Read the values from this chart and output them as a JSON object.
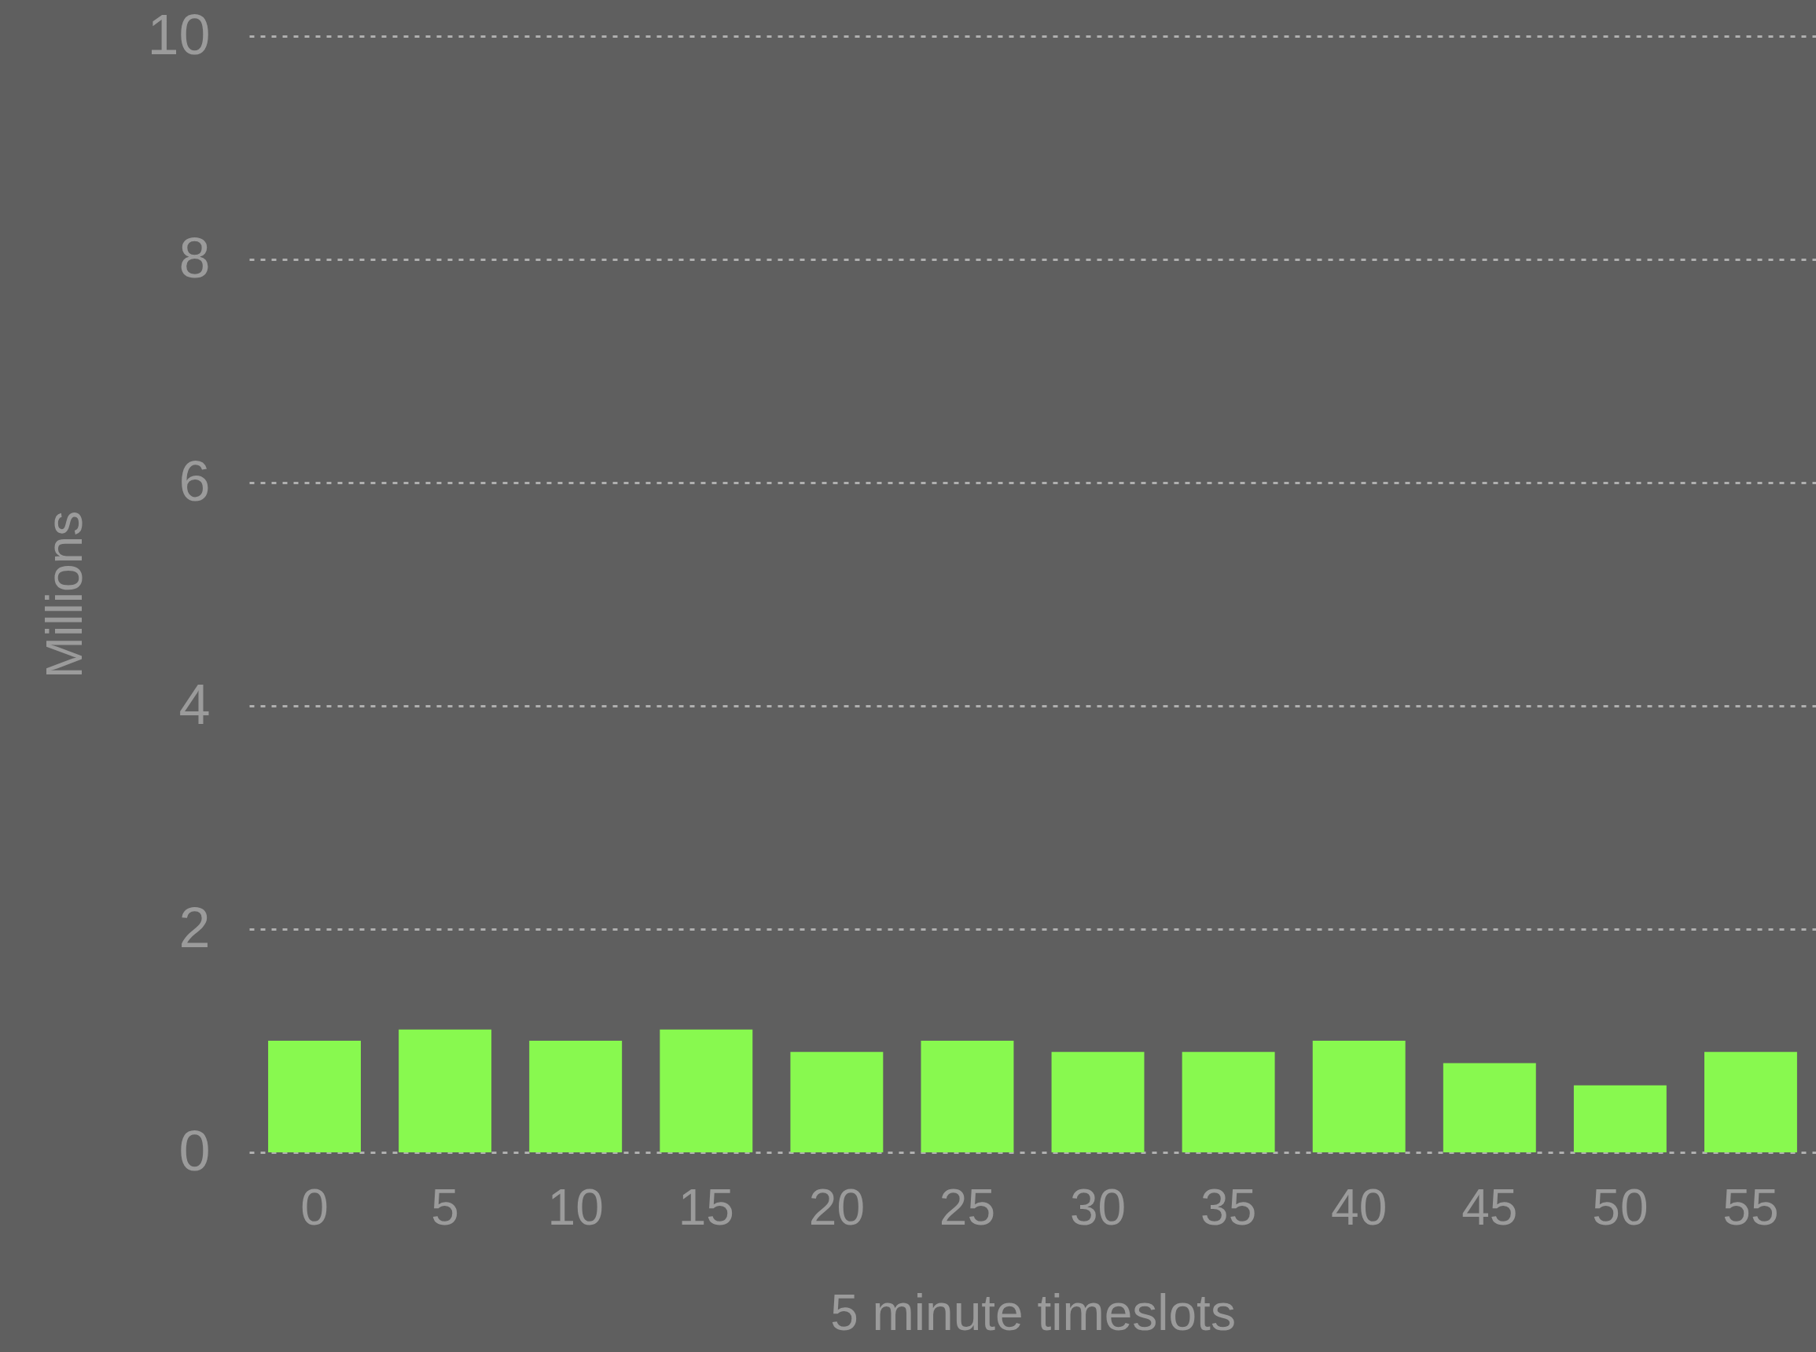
{
  "chart_data": {
    "type": "bar",
    "xlabel": "5 minute timeslots",
    "ylabel": "Millions",
    "categories": [
      "0",
      "5",
      "10",
      "15",
      "20",
      "25",
      "30",
      "35",
      "40",
      "45",
      "50",
      "55"
    ],
    "values": [
      1.0,
      1.1,
      1.0,
      1.1,
      0.9,
      1.0,
      0.9,
      0.9,
      1.0,
      0.8,
      0.6,
      0.9
    ],
    "color": "#88f94f",
    "ylim": [
      0,
      10
    ],
    "yticks": [
      0,
      2,
      4,
      6,
      8,
      10
    ],
    "grid": "y"
  }
}
